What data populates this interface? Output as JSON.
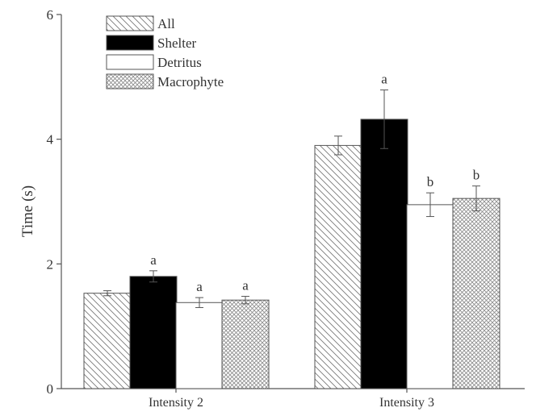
{
  "chart_data": {
    "type": "bar",
    "categories": [
      "Intensity 2",
      "Intensity 3"
    ],
    "series": [
      {
        "name": "All",
        "values": [
          1.53,
          3.9
        ],
        "errors": [
          0.04,
          0.15
        ],
        "sig": [
          "",
          ""
        ],
        "pattern": "diag"
      },
      {
        "name": "Shelter",
        "values": [
          1.8,
          4.32
        ],
        "errors": [
          0.09,
          0.47
        ],
        "sig": [
          "a",
          "a"
        ],
        "pattern": "solid"
      },
      {
        "name": "Detritus",
        "values": [
          1.38,
          2.95
        ],
        "errors": [
          0.08,
          0.19
        ],
        "sig": [
          "a",
          "b"
        ],
        "pattern": "none"
      },
      {
        "name": "Macrophyte",
        "values": [
          1.42,
          3.05
        ],
        "errors": [
          0.06,
          0.2
        ],
        "sig": [
          "a",
          "b"
        ],
        "pattern": "cross"
      }
    ],
    "ylabel": "Time (s)",
    "xlabel": "",
    "title": "",
    "ylim": [
      0,
      6
    ],
    "yticks": [
      0,
      2,
      4,
      6
    ],
    "grid": false,
    "legend_position": "top-left",
    "colors": {
      "stroke": "#555555",
      "fill_solid": "#000000",
      "text": "#333333"
    }
  }
}
